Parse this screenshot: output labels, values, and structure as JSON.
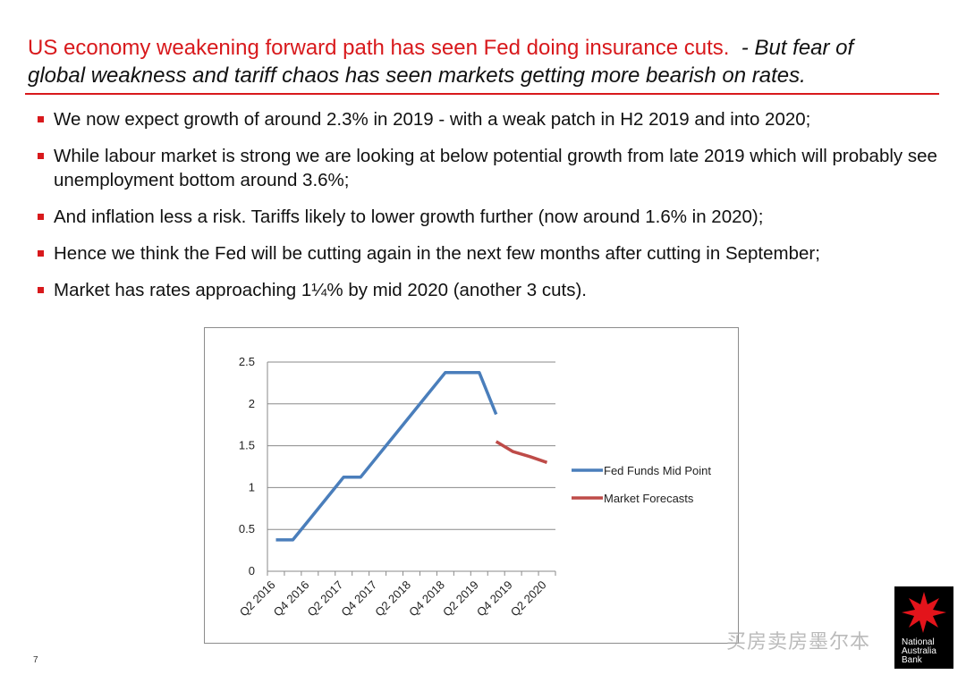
{
  "title": {
    "line1_red": "US economy weakening forward path has seen Fed doing insurance cuts.",
    "line1_black": "- But fear of",
    "line2": "global weakness and tariff chaos has seen markets getting more bearish on rates."
  },
  "bullets": [
    "We now expect growth of around 2.3% in 2019 - with a weak patch in H2 2019 and into 2020;",
    "While labour market is strong we are looking at below potential growth from late 2019 which will probably see unemployment bottom around 3.6%;",
    "And inflation less a risk.  Tariffs likely to lower growth further (now around 1.6% in 2020);",
    "Hence we think the Fed will be cutting again in the next few months after cutting in September;",
    "Market has rates approaching 1¼% by mid 2020 (another 3 cuts)."
  ],
  "colors": {
    "accent": "#d8191c",
    "fed": "#4a7ebb",
    "market": "#be4b48"
  },
  "chart_data": {
    "type": "line",
    "categories": [
      "Q2 2016",
      "Q3 2016",
      "Q4 2016",
      "Q1 2017",
      "Q2 2017",
      "Q3 2017",
      "Q4 2017",
      "Q1 2018",
      "Q2 2018",
      "Q3 2018",
      "Q4 2018",
      "Q1 2019",
      "Q2 2019",
      "Q3 2019",
      "Q4 2019",
      "Q1 2020",
      "Q2 2020"
    ],
    "tick_labels": [
      "Q2 2016",
      "Q4 2016",
      "Q2 2017",
      "Q4 2017",
      "Q2 2018",
      "Q4 2018",
      "Q2 2019",
      "Q4 2019",
      "Q2 2020"
    ],
    "series": [
      {
        "name": "Fed Funds Mid Point",
        "color": "#4a7ebb",
        "values": [
          0.375,
          0.375,
          0.625,
          0.875,
          1.125,
          1.125,
          1.375,
          1.625,
          1.875,
          2.125,
          2.375,
          2.375,
          2.375,
          1.875,
          null,
          null,
          null
        ]
      },
      {
        "name": "Market Forecasts",
        "color": "#be4b48",
        "values": [
          null,
          null,
          null,
          null,
          null,
          null,
          null,
          null,
          null,
          null,
          null,
          null,
          null,
          1.55,
          1.43,
          1.37,
          1.3
        ]
      }
    ],
    "ylim": [
      0,
      2.5
    ],
    "yticks": [
      "0",
      "0.5",
      "1",
      "1.5",
      "2",
      "2.5"
    ],
    "grid": true,
    "legend": "right"
  },
  "footer": {
    "page_number": "7",
    "watermark": "买房卖房墨尔本",
    "logo": "National Australia Bank"
  }
}
